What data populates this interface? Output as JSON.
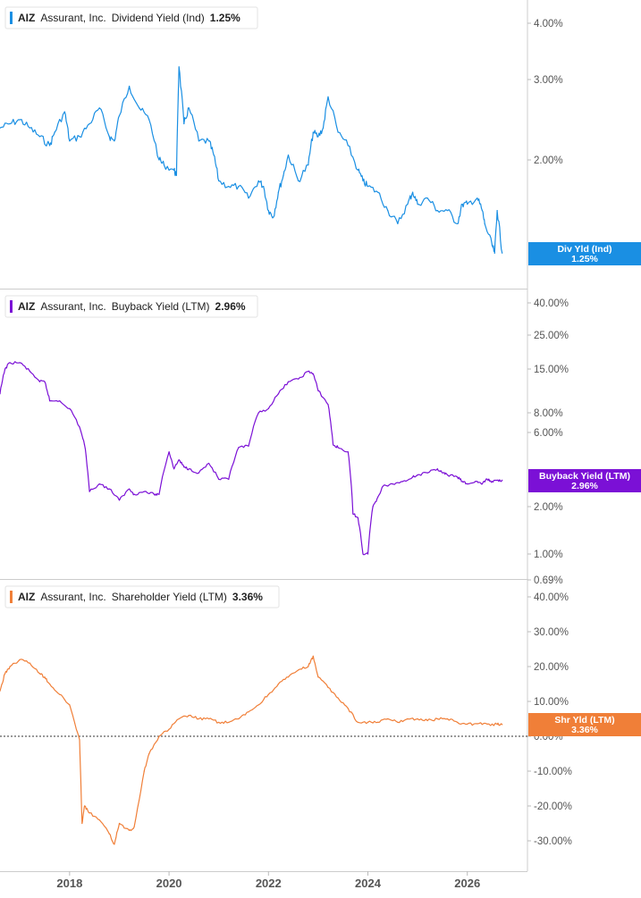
{
  "chart_data": [
    {
      "type": "line",
      "ticker": "AIZ",
      "company": "Assurant, Inc.",
      "metric": "Dividend Yield (Ind)",
      "latest_value": "1.25%",
      "tag_label": "Div Yld (Ind)",
      "tag_value": "1.25%",
      "color": "#1a8fe3",
      "scale": "log",
      "y_ticks": [
        "4.00%",
        "3.00%",
        "2.00%"
      ],
      "y_tick_values": [
        4.0,
        3.0,
        2.0
      ],
      "x": [
        2016.6,
        2016.8,
        2017.0,
        2017.2,
        2017.4,
        2017.6,
        2017.7,
        2017.9,
        2018.0,
        2018.2,
        2018.4,
        2018.6,
        2018.8,
        2018.9,
        2019.0,
        2019.2,
        2019.4,
        2019.6,
        2019.8,
        2019.9,
        2020.1,
        2020.15,
        2020.2,
        2020.3,
        2020.4,
        2020.6,
        2020.8,
        2020.9,
        2021.0,
        2021.2,
        2021.4,
        2021.6,
        2021.8,
        2021.9,
        2022.0,
        2022.1,
        2022.2,
        2022.3,
        2022.4,
        2022.6,
        2022.8,
        2022.9,
        2023.0,
        2023.1,
        2023.2,
        2023.4,
        2023.6,
        2023.8,
        2023.9,
        2024.0,
        2024.2,
        2024.4,
        2024.6,
        2024.8,
        2024.9,
        2025.0,
        2025.2,
        2025.4,
        2025.6,
        2025.8,
        2025.9,
        2026.0,
        2026.2,
        2026.3,
        2026.35,
        2026.5,
        2026.55,
        2026.6,
        2026.7
      ],
      "values": [
        2.35,
        2.4,
        2.45,
        2.35,
        2.25,
        2.15,
        2.3,
        2.55,
        2.2,
        2.25,
        2.4,
        2.6,
        2.25,
        2.2,
        2.5,
        2.9,
        2.6,
        2.45,
        2.0,
        1.95,
        1.9,
        1.85,
        3.2,
        2.4,
        2.6,
        2.2,
        2.2,
        2.05,
        1.8,
        1.75,
        1.75,
        1.65,
        1.8,
        1.75,
        1.55,
        1.5,
        1.7,
        1.85,
        2.05,
        1.8,
        1.95,
        2.3,
        2.25,
        2.35,
        2.75,
        2.3,
        2.15,
        1.9,
        1.8,
        1.75,
        1.7,
        1.55,
        1.45,
        1.6,
        1.7,
        1.6,
        1.65,
        1.55,
        1.55,
        1.45,
        1.6,
        1.6,
        1.65,
        1.55,
        1.45,
        1.3,
        1.25,
        1.55,
        1.25
      ],
      "xlim": [
        2016.6,
        2026.85
      ],
      "ylim": [
        1.15,
        4.6
      ]
    },
    {
      "type": "line",
      "ticker": "AIZ",
      "company": "Assurant, Inc.",
      "metric": "Buyback Yield (LTM)",
      "latest_value": "2.96%",
      "tag_label": "Buyback Yield (LTM)",
      "tag_value": "2.96%",
      "color": "#7b10d6",
      "scale": "log",
      "y_ticks": [
        "40.00%",
        "25.00%",
        "15.00%",
        "8.00%",
        "6.00%",
        "2.00%",
        "1.00%"
      ],
      "y_tick_values": [
        40,
        25,
        15,
        8,
        6,
        2,
        1
      ],
      "x": [
        2016.6,
        2016.7,
        2016.8,
        2017.0,
        2017.2,
        2017.4,
        2017.5,
        2017.6,
        2017.8,
        2018.0,
        2018.2,
        2018.3,
        2018.4,
        2018.6,
        2018.8,
        2019.0,
        2019.2,
        2019.3,
        2019.5,
        2019.7,
        2019.8,
        2020.0,
        2020.1,
        2020.2,
        2020.3,
        2020.4,
        2020.6,
        2020.8,
        2021.0,
        2021.2,
        2021.4,
        2021.6,
        2021.8,
        2022.0,
        2022.2,
        2022.4,
        2022.6,
        2022.8,
        2022.9,
        2023.0,
        2023.2,
        2023.3,
        2023.4,
        2023.6,
        2023.7,
        2023.8,
        2023.9,
        2024.0,
        2024.1,
        2024.2,
        2024.3,
        2024.5,
        2024.7,
        2024.9,
        2025.0,
        2025.2,
        2025.4,
        2025.5,
        2025.6,
        2025.8,
        2025.9,
        2026.0,
        2026.2,
        2026.3,
        2026.4,
        2026.5,
        2026.6,
        2026.7
      ],
      "values": [
        10.5,
        15,
        16.5,
        16.5,
        14.5,
        12.5,
        12.5,
        9.5,
        9.5,
        8.5,
        6.5,
        5.0,
        2.5,
        2.8,
        2.6,
        2.2,
        2.6,
        2.4,
        2.5,
        2.4,
        2.4,
        4.5,
        3.5,
        4.0,
        3.6,
        3.5,
        3.3,
        3.8,
        3.0,
        3.0,
        4.8,
        4.9,
        8.0,
        8.5,
        10.5,
        12.5,
        13.0,
        14.5,
        14.0,
        11.0,
        9.0,
        5.0,
        4.8,
        4.5,
        1.8,
        1.7,
        1.0,
        1.0,
        2.0,
        2.3,
        2.7,
        2.8,
        2.9,
        3.1,
        3.2,
        3.3,
        3.5,
        3.3,
        3.2,
        3.1,
        2.9,
        2.8,
        2.9,
        2.8,
        3.0,
        2.9,
        2.95,
        2.96
      ],
      "xlim": [
        2016.6,
        2026.85
      ],
      "ylim": [
        0.66,
        44
      ]
    },
    {
      "type": "line",
      "ticker": "AIZ",
      "company": "Assurant, Inc.",
      "metric": "Shareholder Yield (LTM)",
      "latest_value": "3.36%",
      "tag_label": "Shr Yld (LTM)",
      "tag_value": "3.36%",
      "color": "#f07f38",
      "scale": "linear",
      "zero_line": true,
      "y_ticks": [
        "40.00%",
        "30.00%",
        "20.00%",
        "10.00%",
        "0.00%",
        "-10.00%",
        "-20.00%",
        "-30.00%"
      ],
      "y_tick_values": [
        40,
        30,
        20,
        10,
        0,
        -10,
        -20,
        -30
      ],
      "x": [
        2016.6,
        2016.7,
        2016.8,
        2017.0,
        2017.2,
        2017.4,
        2017.5,
        2017.6,
        2017.8,
        2018.0,
        2018.2,
        2018.25,
        2018.3,
        2018.4,
        2018.6,
        2018.8,
        2018.9,
        2019.0,
        2019.2,
        2019.3,
        2019.5,
        2019.6,
        2019.8,
        2020.0,
        2020.2,
        2020.4,
        2020.6,
        2020.8,
        2021.0,
        2021.2,
        2021.4,
        2021.6,
        2021.8,
        2022.0,
        2022.2,
        2022.4,
        2022.6,
        2022.8,
        2022.9,
        2023.0,
        2023.2,
        2023.4,
        2023.6,
        2023.8,
        2024.0,
        2024.2,
        2024.4,
        2024.6,
        2024.8,
        2025.0,
        2025.2,
        2025.4,
        2025.6,
        2025.8,
        2026.0,
        2026.2,
        2026.4,
        2026.6,
        2026.7
      ],
      "values": [
        13,
        18,
        20,
        22,
        21,
        18,
        17,
        15,
        12,
        9,
        -1,
        -25,
        -20,
        -22,
        -24,
        -28,
        -31,
        -25,
        -27,
        -26,
        -10,
        -5,
        0,
        2,
        5,
        6,
        5,
        5,
        4,
        4,
        5,
        7,
        9,
        12,
        15,
        17,
        19,
        20,
        23,
        17,
        14,
        11,
        8,
        4,
        4,
        4,
        5,
        4,
        5,
        5,
        4.5,
        5,
        5,
        4,
        3.5,
        3.6,
        3.5,
        3.4,
        3.36
      ],
      "xlim": [
        2016.6,
        2026.85
      ],
      "ylim": [
        -34,
        41
      ]
    }
  ],
  "x_axis": {
    "ticks": [
      "2018",
      "2020",
      "2022",
      "2024",
      "2026"
    ],
    "tick_values": [
      2018,
      2020,
      2022,
      2024,
      2026
    ]
  },
  "bottom_panel_extra_tick": "0.69%"
}
